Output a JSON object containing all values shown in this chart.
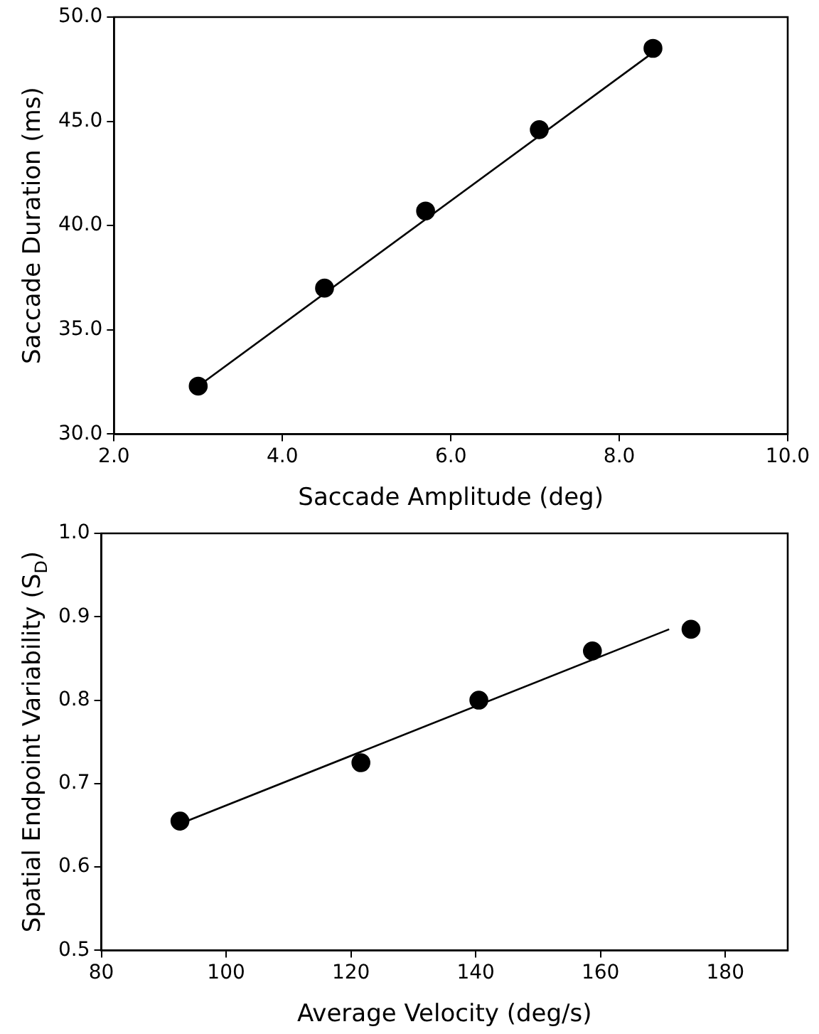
{
  "chart_data": [
    {
      "type": "scatter",
      "xlabel": "Saccade Amplitude (deg)",
      "ylabel": "Saccade Duration (ms)",
      "xlim": [
        2,
        10
      ],
      "ylim": [
        30,
        50
      ],
      "xticks": [
        {
          "value": 2,
          "label": "2.0"
        },
        {
          "value": 4,
          "label": "4.0"
        },
        {
          "value": 6,
          "label": "6.0"
        },
        {
          "value": 8,
          "label": "8.0"
        },
        {
          "value": 10,
          "label": "10.0"
        }
      ],
      "yticks": [
        {
          "value": 30,
          "label": "30.0"
        },
        {
          "value": 35,
          "label": "35.0"
        },
        {
          "value": 40,
          "label": "40.0"
        },
        {
          "value": 45,
          "label": "45.0"
        },
        {
          "value": 50,
          "label": "50.0"
        }
      ],
      "grid": false,
      "legend": false,
      "series": [
        {
          "type": "scatter",
          "marker": "circle",
          "color": "#000000",
          "x": [
            3.0,
            4.5,
            5.7,
            7.05,
            8.4
          ],
          "values": [
            32.3,
            37.0,
            40.7,
            44.6,
            48.5
          ]
        },
        {
          "type": "line",
          "marker": "none",
          "line_style": "solid",
          "color": "#000000",
          "x": [
            3.0,
            8.4
          ],
          "values": [
            32.3,
            48.3
          ]
        }
      ]
    },
    {
      "type": "scatter",
      "xlabel": "Average Velocity (deg/s)",
      "ylabel": "Spatial Endpoint Variability (S$_{D}$)",
      "xlim": [
        80,
        190
      ],
      "ylim": [
        0.5,
        1.0
      ],
      "xticks": [
        80,
        100,
        120,
        140,
        160,
        180
      ],
      "yticks": [
        {
          "value": 0.5,
          "label": "0.5"
        },
        {
          "value": 0.6,
          "label": "0.6"
        },
        {
          "value": 0.7,
          "label": "0.7"
        },
        {
          "value": 0.8,
          "label": "0.8"
        },
        {
          "value": 0.9,
          "label": "0.9"
        },
        {
          "value": 1.0,
          "label": "1.0"
        }
      ],
      "grid": false,
      "legend": false,
      "series": [
        {
          "type": "scatter",
          "marker": "circle",
          "color": "#000000",
          "x": [
            92.6,
            121.6,
            140.5,
            158.7,
            174.5
          ],
          "values": [
            0.655,
            0.725,
            0.8,
            0.859,
            0.885
          ]
        },
        {
          "type": "line",
          "marker": "none",
          "line_style": "solid",
          "color": "#000000",
          "x": [
            93,
            171
          ],
          "values": [
            0.653,
            0.885
          ]
        }
      ]
    }
  ]
}
